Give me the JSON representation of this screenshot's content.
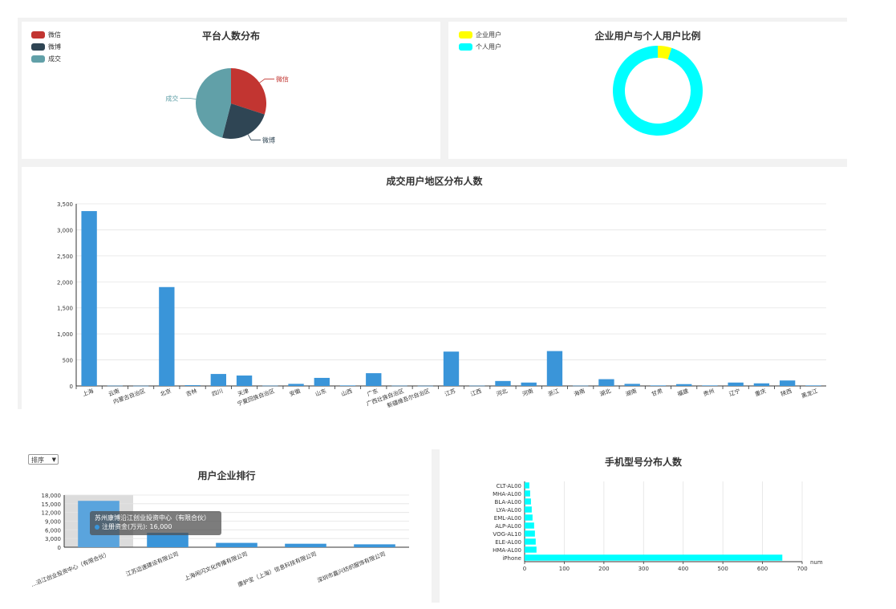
{
  "platform_chart": {
    "title": "平台人数分布",
    "legend": [
      "微信",
      "微博",
      "成交"
    ]
  },
  "ratio_chart": {
    "title": "企业用户与个人用户比例",
    "legend": [
      "企业用户",
      "个人用户"
    ]
  },
  "region_chart": {
    "title": "成交用户地区分布人数"
  },
  "company_chart": {
    "title": "用户企业排行",
    "sort_label": "排序",
    "tooltip_title": "苏州康博沿江创业投资中心（有限合伙）",
    "tooltip_text": "注册资金(万元): 16,000"
  },
  "phone_chart": {
    "title": "手机型号分布人数",
    "axis_name": "num"
  },
  "colors": {
    "wechat": "#c23531",
    "weibo": "#2f4554",
    "deal": "#61a0a8",
    "enterprise": "#ffff00",
    "personal": "#00ffff",
    "bar": "#3a95d9",
    "phone_bar": "#00ffff"
  },
  "chart_data": [
    {
      "type": "pie",
      "title": "平台人数分布",
      "categories": [
        "微信",
        "微博",
        "成交"
      ],
      "values": [
        30,
        24,
        46
      ],
      "legend_position": "top-left"
    },
    {
      "type": "pie",
      "title": "企业用户与个人用户比例",
      "categories": [
        "企业用户",
        "个人用户"
      ],
      "values": [
        5,
        95
      ],
      "legend_position": "top-left"
    },
    {
      "type": "bar",
      "title": "成交用户地区分布人数",
      "categories": [
        "上海",
        "云南",
        "内蒙古自治区",
        "北京",
        "吉林",
        "四川",
        "天津",
        "宁夏回族自治区",
        "安徽",
        "山东",
        "山西",
        "广东",
        "广西壮族自治区",
        "新疆维吾尔自治区",
        "江苏",
        "江西",
        "河北",
        "河南",
        "浙江",
        "海南",
        "湖北",
        "湖南",
        "甘肃",
        "福建",
        "贵州",
        "辽宁",
        "重庆",
        "陕西",
        "黑龙江"
      ],
      "values": [
        3360,
        5,
        3,
        1900,
        15,
        230,
        200,
        5,
        40,
        155,
        10,
        245,
        5,
        3,
        660,
        5,
        95,
        65,
        670,
        5,
        130,
        40,
        10,
        35,
        10,
        65,
        50,
        105,
        10
      ],
      "ylim": [
        0,
        3500
      ],
      "yticks": [
        0,
        500,
        1000,
        1500,
        2000,
        2500,
        3000,
        3500
      ],
      "grid": true
    },
    {
      "type": "bar",
      "title": "用户企业排行",
      "categories": [
        "苏州康博沿江创业投资中心（有限合伙）",
        "江苏迈速建设有限公司",
        "上海闹闪文化传播有限公司",
        "康护宝（上海）信息科技有限公司",
        "深圳市嘉兴纺织服饰有限公司"
      ],
      "visible_labels": [
        "...沿江创业投资中心（有限合伙）",
        "江苏迈速建设有限公司",
        "上海闹闪文化传播有限公司",
        "康护宝（上海）信息科技有限公司",
        "深圳市嘉兴纺织服饰有限公司"
      ],
      "values": [
        16000,
        5000,
        1500,
        1200,
        1000
      ],
      "ylim": [
        0,
        18000
      ],
      "yticks": [
        0,
        3000,
        6000,
        9000,
        12000,
        15000,
        18000
      ]
    },
    {
      "type": "bar",
      "orientation": "horizontal",
      "title": "手机型号分布人数",
      "categories": [
        "iPhone",
        "HMA-AL00",
        "ELE-AL00",
        "VOG-AL10",
        "ALP-AL00",
        "EML-AL00",
        "LYA-AL00",
        "BLA-AL00",
        "MHA-AL00",
        "CLT-AL00"
      ],
      "values": [
        650,
        30,
        28,
        26,
        24,
        20,
        18,
        16,
        14,
        12
      ],
      "xlim": [
        0,
        700
      ],
      "xticks": [
        0,
        100,
        200,
        300,
        400,
        500,
        600,
        700
      ],
      "xlabel": "num"
    }
  ]
}
